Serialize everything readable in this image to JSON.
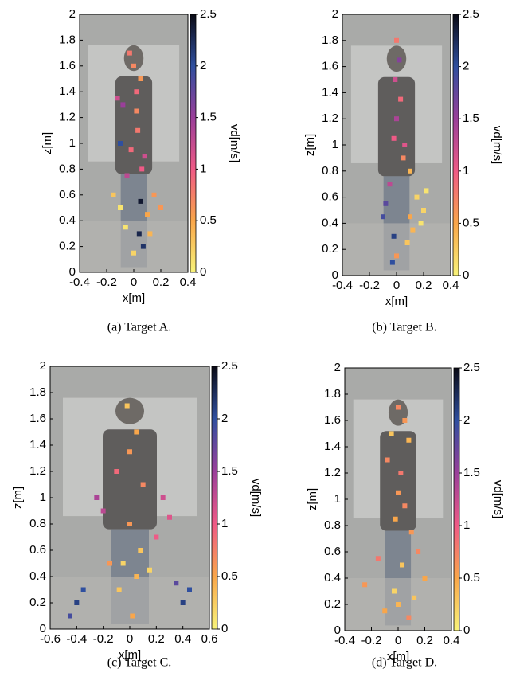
{
  "chart_data": [
    {
      "type": "scatter",
      "caption": "(a) Target A.",
      "x_label": "x[m]",
      "y_label": "z[m]",
      "colorbar_label": "vd[m/s]",
      "x": [
        -0.03,
        0.0,
        0.05,
        0.02,
        -0.08,
        -0.12,
        -0.1,
        0.03,
        0.08,
        0.06,
        -0.05,
        0.15,
        0.2,
        0.1,
        -0.1,
        -0.06,
        0.04,
        0.07,
        0.0,
        -0.15,
        0.12,
        0.02,
        -0.02,
        0.05
      ],
      "y": [
        1.7,
        1.6,
        1.5,
        1.4,
        1.3,
        1.35,
        1.0,
        1.1,
        0.9,
        0.8,
        0.75,
        0.6,
        0.5,
        0.45,
        0.5,
        0.35,
        0.3,
        0.2,
        0.15,
        0.6,
        0.3,
        1.25,
        0.95,
        0.55
      ],
      "c": [
        0.8,
        0.7,
        0.6,
        0.9,
        1.5,
        1.2,
        2.0,
        0.8,
        1.2,
        1.0,
        1.3,
        0.6,
        0.6,
        0.5,
        0.1,
        0.1,
        2.3,
        2.2,
        0.2,
        0.3,
        0.4,
        0.7,
        0.9,
        2.4
      ],
      "xlim": [
        -0.4,
        0.4
      ],
      "ylim": [
        0,
        2
      ],
      "xticks": [
        -0.4,
        -0.2,
        0,
        0.2,
        0.4
      ],
      "yticks": [
        0,
        0.2,
        0.4,
        0.6,
        0.8,
        1,
        1.2,
        1.4,
        1.6,
        1.8,
        2
      ],
      "clim": [
        0,
        2.5
      ],
      "cticks": [
        0,
        0.5,
        1,
        1.5,
        2,
        2.5
      ],
      "colormap": [
        "#f8f37a",
        "#f9a64a",
        "#ef5a86",
        "#9a3f9a",
        "#2f4f9f",
        "#0a0a14"
      ]
    },
    {
      "type": "scatter",
      "caption": "(b) Target B.",
      "x_label": "x[m]",
      "y_label": "z[m]",
      "colorbar_label": "vd[m/s]",
      "x": [
        0.0,
        0.02,
        -0.01,
        0.03,
        0.0,
        -0.02,
        0.05,
        0.1,
        -0.05,
        0.15,
        0.2,
        0.18,
        -0.08,
        -0.02,
        0.08,
        0.12,
        0.0,
        -0.03,
        0.06,
        0.22,
        0.1,
        -0.1
      ],
      "y": [
        1.8,
        1.65,
        1.5,
        1.35,
        1.2,
        1.05,
        0.9,
        0.8,
        0.7,
        0.6,
        0.5,
        0.4,
        0.55,
        0.3,
        0.25,
        0.35,
        0.15,
        0.1,
        1.0,
        0.65,
        0.45,
        0.45
      ],
      "c": [
        0.8,
        1.6,
        1.2,
        0.9,
        1.4,
        1.0,
        0.7,
        0.4,
        1.3,
        0.2,
        0.2,
        0.1,
        1.8,
        2.1,
        0.3,
        0.4,
        0.6,
        2.0,
        1.1,
        0.1,
        0.5,
        1.9
      ],
      "xlim": [
        -0.4,
        0.4
      ],
      "ylim": [
        0,
        2
      ],
      "xticks": [
        -0.4,
        -0.2,
        0,
        0.2,
        0.4
      ],
      "yticks": [
        0,
        0.2,
        0.4,
        0.6,
        0.8,
        1,
        1.2,
        1.4,
        1.6,
        1.8,
        2
      ],
      "clim": [
        0,
        2.5
      ],
      "cticks": [
        0,
        0.5,
        1,
        1.5,
        2,
        2.5
      ],
      "colormap": [
        "#f8f37a",
        "#f9a64a",
        "#ef5a86",
        "#9a3f9a",
        "#2f4f9f",
        "#0a0a14"
      ]
    },
    {
      "type": "scatter",
      "caption": "(c) Target C.",
      "x_label": "x[m]",
      "y_label": "z[m]",
      "colorbar_label": "vd[m/s]",
      "x": [
        -0.02,
        0.05,
        0.0,
        -0.1,
        0.1,
        -0.25,
        -0.2,
        0.25,
        0.3,
        0.0,
        0.08,
        -0.05,
        -0.4,
        -0.35,
        -0.45,
        0.35,
        0.45,
        0.4,
        0.05,
        -0.08,
        0.15,
        -0.15,
        0.02,
        0.2
      ],
      "y": [
        1.7,
        1.5,
        1.35,
        1.2,
        1.1,
        1.0,
        0.9,
        1.0,
        0.85,
        0.8,
        0.6,
        0.5,
        0.2,
        0.3,
        0.1,
        0.35,
        0.3,
        0.2,
        0.4,
        0.3,
        0.45,
        0.5,
        0.1,
        0.7
      ],
      "c": [
        0.3,
        0.5,
        0.6,
        0.9,
        0.7,
        1.4,
        1.3,
        1.2,
        1.1,
        0.6,
        0.3,
        0.2,
        2.1,
        2.0,
        1.9,
        1.8,
        2.0,
        2.1,
        0.4,
        0.3,
        0.2,
        0.6,
        0.5,
        1.0
      ],
      "xlim": [
        -0.6,
        0.6
      ],
      "ylim": [
        0,
        2
      ],
      "xticks": [
        -0.6,
        -0.4,
        -0.2,
        0,
        0.2,
        0.4,
        0.6
      ],
      "yticks": [
        0,
        0.2,
        0.4,
        0.6,
        0.8,
        1,
        1.2,
        1.4,
        1.6,
        1.8,
        2
      ],
      "clim": [
        0,
        2.5
      ],
      "cticks": [
        0,
        0.5,
        1,
        1.5,
        2,
        2.5
      ],
      "colormap": [
        "#f8f37a",
        "#f9a64a",
        "#ef5a86",
        "#9a3f9a",
        "#2f4f9f",
        "#0a0a14"
      ]
    },
    {
      "type": "scatter",
      "caption": "(d) Target D.",
      "x_label": "x[m]",
      "y_label": "z[m]",
      "colorbar_label": "vd[m/s]",
      "x": [
        0.0,
        0.05,
        -0.05,
        0.08,
        -0.08,
        0.02,
        0.0,
        0.05,
        -0.02,
        0.1,
        0.15,
        -0.15,
        -0.25,
        0.2,
        0.03,
        -0.03,
        0.0,
        0.08,
        -0.1,
        0.12
      ],
      "y": [
        1.7,
        1.6,
        1.5,
        1.45,
        1.3,
        1.2,
        1.05,
        0.95,
        0.85,
        0.75,
        0.6,
        0.55,
        0.35,
        0.4,
        0.5,
        0.3,
        0.2,
        0.1,
        0.15,
        0.25
      ],
      "c": [
        0.7,
        0.6,
        0.3,
        0.4,
        0.7,
        0.8,
        0.6,
        0.7,
        0.5,
        0.6,
        0.7,
        0.8,
        0.6,
        0.5,
        0.3,
        0.2,
        0.4,
        0.7,
        0.5,
        0.3
      ],
      "xlim": [
        -0.4,
        0.4
      ],
      "ylim": [
        0,
        2
      ],
      "xticks": [
        -0.4,
        -0.2,
        0,
        0.2,
        0.4
      ],
      "yticks": [
        0,
        0.2,
        0.4,
        0.6,
        0.8,
        1,
        1.2,
        1.4,
        1.6,
        1.8,
        2
      ],
      "clim": [
        0,
        2.5
      ],
      "cticks": [
        0,
        0.5,
        1,
        1.5,
        2,
        2.5
      ],
      "colormap": [
        "#f8f37a",
        "#f9a64a",
        "#ef5a86",
        "#9a3f9a",
        "#2f4f9f",
        "#0a0a14"
      ]
    }
  ]
}
